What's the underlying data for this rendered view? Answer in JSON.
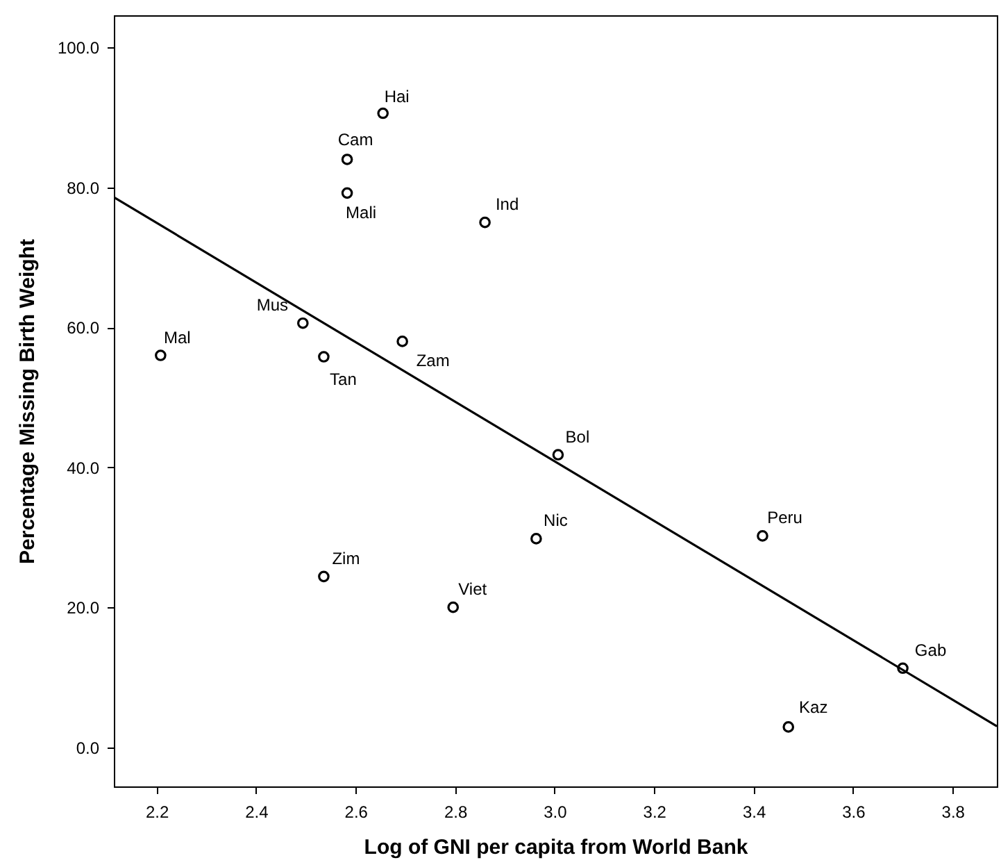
{
  "chart_data": {
    "type": "scatter",
    "xlabel": "Log of GNI per capita from World Bank",
    "ylabel": "Percentage Missing Birth Weight",
    "xlim": [
      2.114,
      3.889
    ],
    "ylim": [
      -5.6,
      104.6
    ],
    "xticks": [
      2.2,
      2.4,
      2.6,
      2.8,
      {
        "value": 3,
        "label": "3.0"
      },
      3.2,
      3.4,
      3.6,
      3.8
    ],
    "yticks": [
      {
        "value": 0,
        "label": "0.0"
      },
      {
        "value": 20,
        "label": "20.0"
      },
      {
        "value": 40,
        "label": "40.0"
      },
      {
        "value": 60,
        "label": "60.0"
      },
      {
        "value": 80,
        "label": "80.0"
      },
      {
        "value": 100,
        "label": "100.0"
      }
    ],
    "series": [
      {
        "color": "#000000",
        "marker": "circle",
        "x": [
          2.655,
          2.583,
          2.583,
          2.86,
          2.494,
          2.208,
          2.536,
          2.694,
          2.536,
          2.796,
          3.007,
          2.963,
          3.418,
          3.7,
          3.47
        ],
        "values": [
          90.6,
          84.0,
          79.2,
          75.0,
          60.6,
          56.0,
          55.8,
          58.0,
          24.4,
          20.0,
          41.8,
          29.8,
          30.2,
          11.3,
          2.9
        ]
      },
      {
        "type": "line",
        "color": "#000000",
        "line_style": "solid",
        "x": [
          2.114,
          3.889
        ],
        "values": [
          78.6,
          3.0
        ]
      }
    ],
    "annotations": [
      {
        "text": "Hai",
        "x": 2.655,
        "y": 90.6
      },
      {
        "text": "Cam",
        "x": 2.583,
        "y": 84.0
      },
      {
        "text": "Mali",
        "x": 2.583,
        "y": 79.2
      },
      {
        "text": "Ind",
        "x": 2.86,
        "y": 75.0
      },
      {
        "text": "Mus",
        "x": 2.494,
        "y": 60.6
      },
      {
        "text": "Mal",
        "x": 2.208,
        "y": 56.0
      },
      {
        "text": "Tan",
        "x": 2.536,
        "y": 55.8
      },
      {
        "text": "Zam",
        "x": 2.694,
        "y": 58.0
      },
      {
        "text": "Zim",
        "x": 2.536,
        "y": 24.4
      },
      {
        "text": "Viet",
        "x": 2.796,
        "y": 20.0
      },
      {
        "text": "Bol",
        "x": 3.007,
        "y": 41.8
      },
      {
        "text": "Nic",
        "x": 2.963,
        "y": 29.8
      },
      {
        "text": "Peru",
        "x": 3.418,
        "y": 30.2
      },
      {
        "text": "Gab",
        "x": 3.7,
        "y": 11.3
      },
      {
        "text": "Kaz",
        "x": 3.47,
        "y": 2.9
      }
    ]
  }
}
